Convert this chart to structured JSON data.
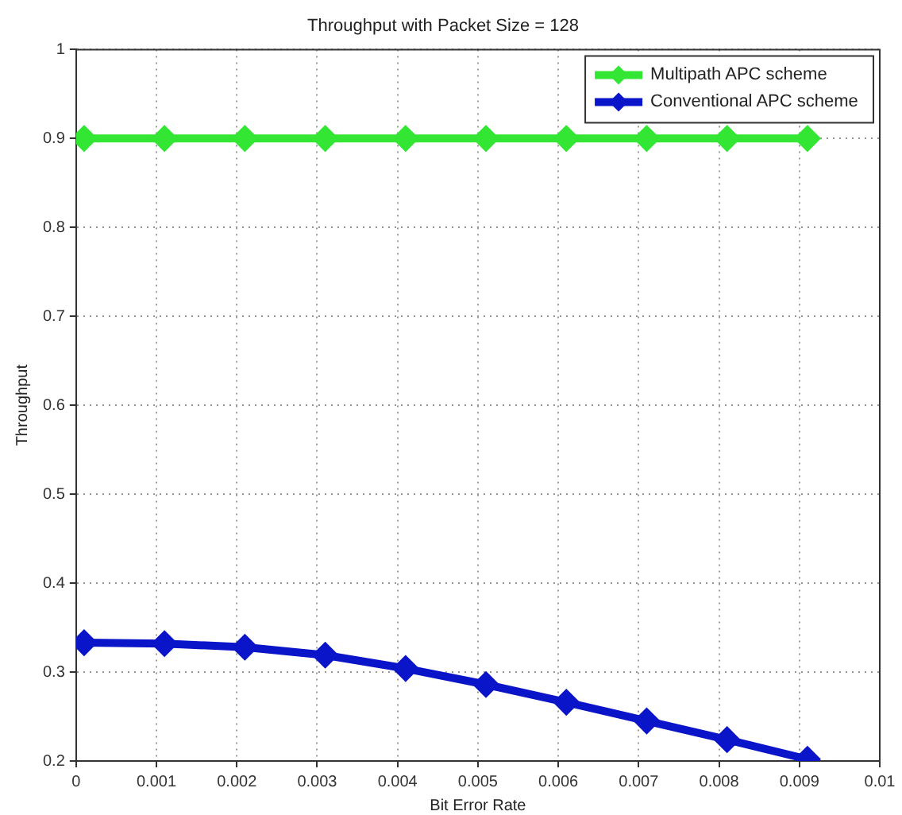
{
  "chart_data": {
    "type": "line",
    "title": "Throughput with Packet Size = 128",
    "xlabel": "Bit Error Rate",
    "ylabel": "Throughput",
    "x": [
      0.0001,
      0.0011,
      0.0021,
      0.0031,
      0.0041,
      0.0051,
      0.0061,
      0.0071,
      0.0081,
      0.0091
    ],
    "series": [
      {
        "name": "Multipath APC scheme",
        "color": "#33e633",
        "values": [
          0.9,
          0.9,
          0.9,
          0.9,
          0.9,
          0.9,
          0.9,
          0.9,
          0.9,
          0.9
        ]
      },
      {
        "name": "Conventional APC scheme",
        "color": "#0a14c8",
        "values": [
          0.333,
          0.332,
          0.328,
          0.319,
          0.304,
          0.286,
          0.266,
          0.245,
          0.224,
          0.202
        ]
      }
    ],
    "xlim": [
      0,
      0.01
    ],
    "xticks": [
      0,
      0.001,
      0.002,
      0.003,
      0.004,
      0.005,
      0.006,
      0.007,
      0.008,
      0.009,
      0.01
    ],
    "ylim": [
      0.2,
      1
    ],
    "yticks": [
      0.2,
      0.3,
      0.4,
      0.5,
      0.6,
      0.7,
      0.8,
      0.9,
      1
    ],
    "grid": true,
    "legend": "top right",
    "marker": "diamond",
    "line_style": "solid"
  }
}
